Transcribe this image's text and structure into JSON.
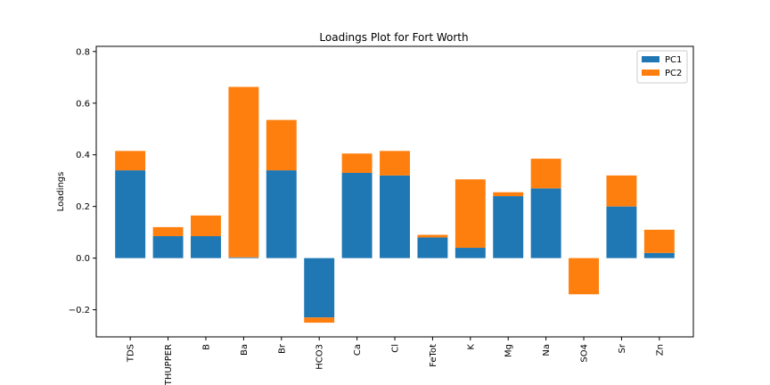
{
  "chart_data": {
    "type": "bar",
    "stacked": true,
    "title": "Loadings Plot for Fort Worth",
    "xlabel": "",
    "ylabel": "Loadings",
    "ylim": [
      -0.305,
      0.82
    ],
    "yticks": [
      -0.2,
      0.0,
      0.2,
      0.4,
      0.6,
      0.8
    ],
    "ytick_labels": [
      "−0.2",
      "0.0",
      "0.2",
      "0.4",
      "0.6",
      "0.8"
    ],
    "grid": false,
    "legend": "top-right",
    "categories": [
      "TDS",
      "THUPPER",
      "B",
      "Ba",
      "Br",
      "HCO3",
      "Ca",
      "Cl",
      "FeTot",
      "K",
      "Mg",
      "Na",
      "SO4",
      "Sr",
      "Zn"
    ],
    "series": [
      {
        "name": "PC1",
        "color": "#1f77b4",
        "values": [
          0.34,
          0.085,
          0.085,
          0.003,
          0.34,
          -0.23,
          0.33,
          0.32,
          0.08,
          0.04,
          0.24,
          0.27,
          0.0,
          0.2,
          0.02
        ]
      },
      {
        "name": "PC2",
        "color": "#ff7f0e",
        "values": [
          0.075,
          0.035,
          0.08,
          0.66,
          0.195,
          -0.02,
          0.075,
          0.095,
          0.01,
          0.265,
          0.015,
          0.115,
          -0.14,
          0.12,
          0.09
        ]
      }
    ]
  }
}
